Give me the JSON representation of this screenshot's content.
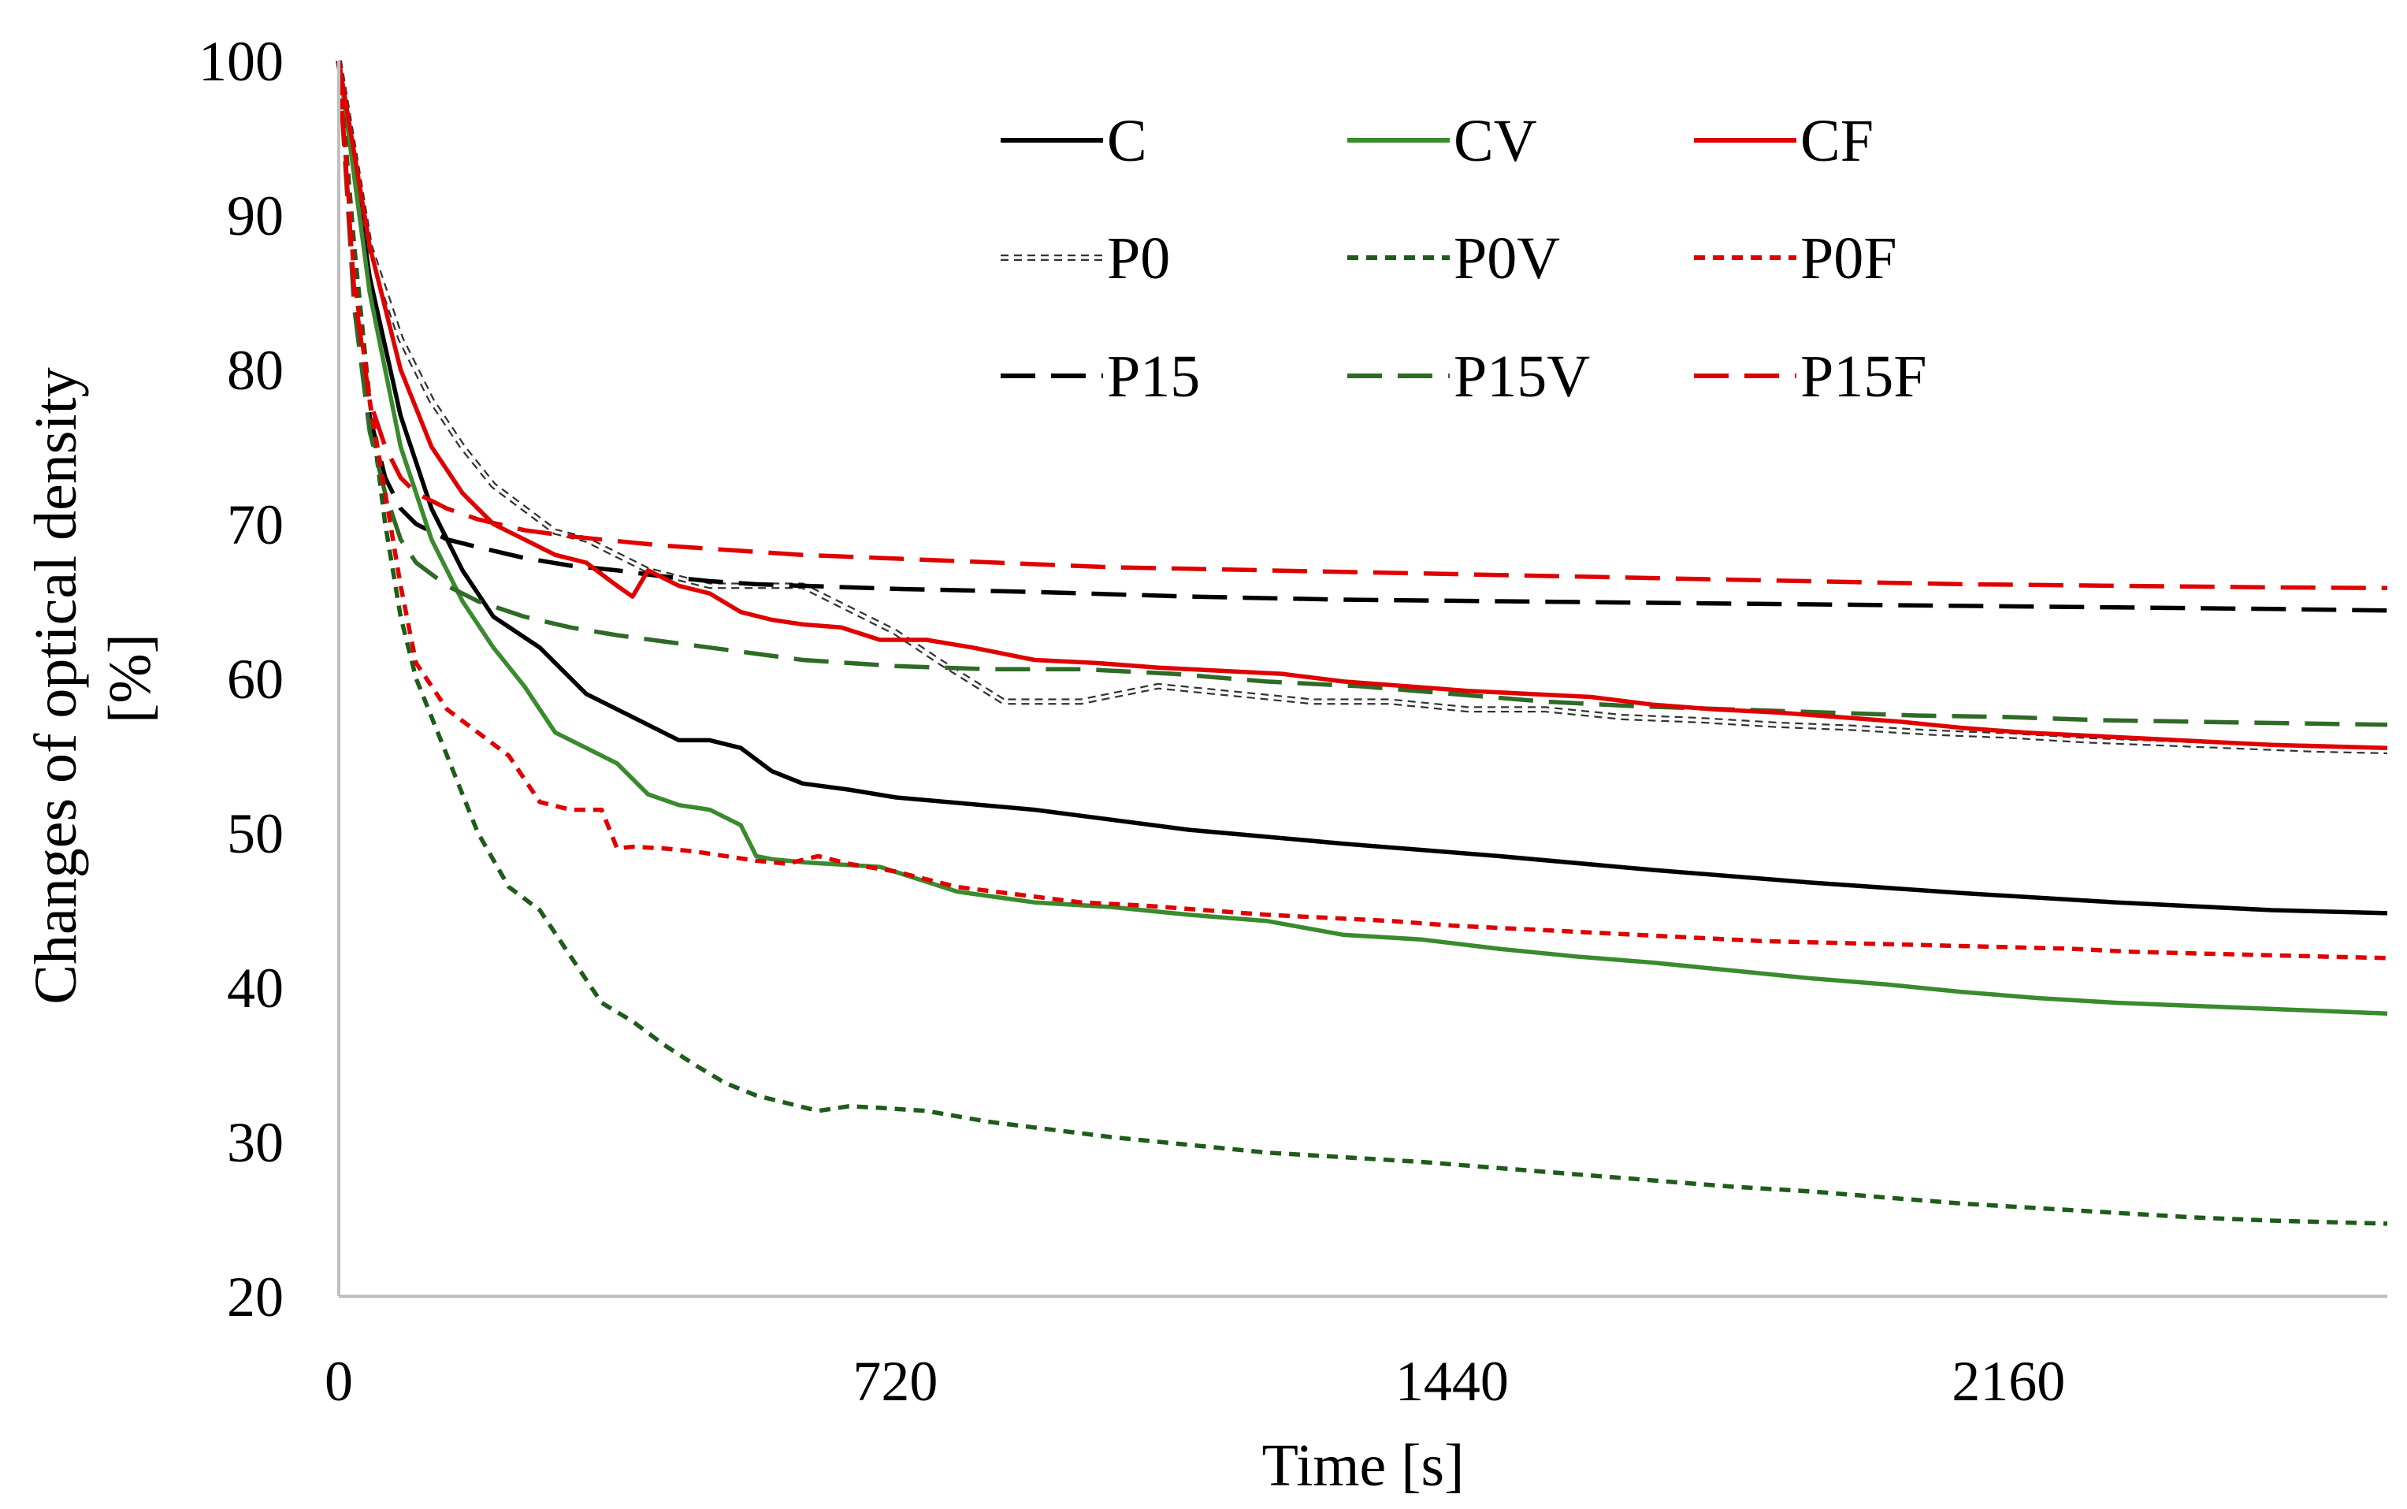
{
  "chart_data": {
    "type": "line",
    "title": "",
    "xlabel": "Time [s]",
    "ylabel_lines": [
      "Changes of optical density",
      "[%]"
    ],
    "xlim": [
      0,
      2650
    ],
    "ylim": [
      20,
      100
    ],
    "xticks": [
      0,
      720,
      1440,
      2160
    ],
    "yticks": [
      20,
      30,
      40,
      50,
      60,
      70,
      80,
      90,
      100
    ],
    "grid": false,
    "legend_position": "top-right",
    "series": [
      {
        "name": "C",
        "color": "#000000",
        "dash": "solid",
        "x": [
          0,
          40,
          80,
          120,
          160,
          200,
          260,
          320,
          400,
          440,
          480,
          520,
          560,
          600,
          660,
          720,
          900,
          1100,
          1300,
          1500,
          1700,
          1900,
          2100,
          2300,
          2500,
          2650
        ],
        "y": [
          100,
          86,
          77,
          71,
          67,
          64,
          62,
          59,
          57,
          56,
          56,
          55.5,
          54,
          53.2,
          52.8,
          52.3,
          51.5,
          50.2,
          49.3,
          48.5,
          47.6,
          46.8,
          46.1,
          45.5,
          45,
          44.8
        ]
      },
      {
        "name": "P0",
        "color": "#333333",
        "dash": "double",
        "x": [
          0,
          40,
          80,
          120,
          160,
          200,
          240,
          280,
          320,
          360,
          400,
          440,
          480,
          520,
          560,
          600,
          640,
          680,
          720,
          780,
          860,
          960,
          1060,
          1160,
          1260,
          1360,
          1460,
          1560,
          1660,
          1760,
          1860,
          1960,
          2060,
          2160,
          2260,
          2360,
          2460,
          2560,
          2650
        ],
        "y": [
          100,
          88,
          82,
          78,
          75,
          72.5,
          71,
          69.5,
          69,
          68,
          67,
          66.5,
          66,
          66,
          66,
          66,
          65,
          64,
          63,
          61,
          58.5,
          58.5,
          59.5,
          59,
          58.5,
          58.5,
          58,
          58,
          57.5,
          57.3,
          57,
          56.8,
          56.5,
          56.3,
          56,
          55.8,
          55.6,
          55.4,
          55.3
        ]
      },
      {
        "name": "P15",
        "color": "#000000",
        "dash": "long-dash",
        "x": [
          0,
          20,
          40,
          60,
          80,
          100,
          140,
          180,
          240,
          300,
          360,
          420,
          480,
          540,
          600,
          720,
          900,
          1100,
          1300,
          1500,
          1700,
          1900,
          2100,
          2300,
          2500,
          2650
        ],
        "y": [
          100,
          85,
          77,
          73,
          71,
          70,
          69,
          68.5,
          67.8,
          67.3,
          67,
          66.6,
          66.3,
          66.1,
          66,
          65.8,
          65.6,
          65.3,
          65.1,
          65,
          64.9,
          64.8,
          64.7,
          64.6,
          64.5,
          64.4
        ]
      },
      {
        "name": "CV",
        "color": "#3a8a2e",
        "dash": "solid",
        "x": [
          0,
          40,
          80,
          120,
          160,
          200,
          240,
          280,
          320,
          360,
          400,
          440,
          480,
          520,
          540,
          560,
          600,
          700,
          800,
          900,
          1000,
          1100,
          1200,
          1300,
          1400,
          1500,
          1600,
          1700,
          1800,
          1900,
          2000,
          2100,
          2200,
          2300,
          2400,
          2500,
          2650
        ],
        "y": [
          100,
          85,
          75,
          69,
          65,
          62,
          59.5,
          56.5,
          55.5,
          54.5,
          52.5,
          51.8,
          51.5,
          50.5,
          48.5,
          48.3,
          48.1,
          47.8,
          46.2,
          45.5,
          45.2,
          44.7,
          44.3,
          43.4,
          43.1,
          42.5,
          42,
          41.6,
          41.1,
          40.6,
          40.2,
          39.7,
          39.3,
          39,
          38.8,
          38.6,
          38.3
        ]
      },
      {
        "name": "P0V",
        "color": "#1f5c1a",
        "dash": "short-dash",
        "x": [
          0,
          20,
          40,
          60,
          80,
          100,
          140,
          180,
          220,
          260,
          300,
          340,
          380,
          420,
          460,
          500,
          540,
          580,
          620,
          660,
          700,
          760,
          840,
          920,
          1000,
          1100,
          1200,
          1300,
          1400,
          1500,
          1600,
          1700,
          1800,
          1900,
          2000,
          2100,
          2200,
          2300,
          2400,
          2500,
          2650
        ],
        "y": [
          100,
          88,
          78,
          70,
          64,
          60,
          55,
          50,
          46.5,
          45,
          42,
          39,
          37.8,
          36.3,
          35,
          33.8,
          33,
          32.5,
          32,
          32.3,
          32.2,
          32,
          31.3,
          30.8,
          30.3,
          29.8,
          29.3,
          29,
          28.7,
          28.3,
          27.9,
          27.5,
          27.1,
          26.8,
          26.4,
          26,
          25.7,
          25.4,
          25.1,
          24.9,
          24.7
        ]
      },
      {
        "name": "P15V",
        "color": "#2e6b26",
        "dash": "long-dash",
        "x": [
          0,
          20,
          40,
          60,
          80,
          100,
          140,
          180,
          240,
          300,
          360,
          420,
          480,
          540,
          600,
          720,
          840,
          960,
          1080,
          1200,
          1320,
          1440,
          1560,
          1680,
          1800,
          1920,
          2040,
          2160,
          2280,
          2400,
          2520,
          2650
        ],
        "y": [
          100,
          84,
          76,
          72,
          69,
          67.5,
          66,
          65,
          64,
          63.3,
          62.8,
          62.4,
          62,
          61.6,
          61.2,
          60.8,
          60.6,
          60.6,
          60.3,
          59.8,
          59.5,
          59,
          58.5,
          58.2,
          58,
          57.8,
          57.6,
          57.5,
          57.3,
          57.2,
          57.1,
          57
        ]
      },
      {
        "name": "CF",
        "color": "#e00000",
        "dash": "solid",
        "x": [
          0,
          40,
          80,
          120,
          160,
          200,
          240,
          280,
          320,
          360,
          380,
          400,
          440,
          480,
          520,
          560,
          600,
          650,
          700,
          760,
          820,
          900,
          980,
          1060,
          1140,
          1220,
          1300,
          1380,
          1460,
          1540,
          1620,
          1700,
          1780,
          1860,
          1940,
          2020,
          2100,
          2180,
          2260,
          2340,
          2420,
          2500,
          2650
        ],
        "y": [
          100,
          88,
          80,
          75,
          72,
          70,
          69,
          68,
          67.5,
          66,
          65.3,
          67,
          66,
          65.5,
          64.3,
          63.8,
          63.5,
          63.3,
          62.5,
          62.5,
          62,
          61.2,
          61,
          60.7,
          60.5,
          60.3,
          59.8,
          59.5,
          59.2,
          59,
          58.8,
          58.3,
          58,
          57.8,
          57.5,
          57.2,
          56.8,
          56.5,
          56.3,
          56.1,
          55.9,
          55.7,
          55.5
        ]
      },
      {
        "name": "P0F",
        "color": "#e00000",
        "dash": "short-dash",
        "x": [
          0,
          20,
          40,
          60,
          80,
          100,
          140,
          180,
          220,
          260,
          300,
          340,
          360,
          380,
          420,
          460,
          500,
          540,
          580,
          620,
          660,
          720,
          800,
          880,
          960,
          1040,
          1120,
          1200,
          1280,
          1360,
          1440,
          1520,
          1600,
          1680,
          1760,
          1840,
          1920,
          2000,
          2080,
          2160,
          2240,
          2320,
          2400,
          2480,
          2560,
          2650
        ],
        "y": [
          100,
          86,
          78,
          72,
          66,
          61,
          58,
          56.5,
          55,
          52,
          51.5,
          51.5,
          49,
          49.1,
          49,
          48.8,
          48.5,
          48.2,
          48,
          48.5,
          48,
          47.5,
          46.5,
          46,
          45.5,
          45.3,
          45,
          44.7,
          44.5,
          44.3,
          44,
          43.8,
          43.6,
          43.4,
          43.2,
          43,
          42.9,
          42.8,
          42.7,
          42.6,
          42.5,
          42.3,
          42.2,
          42.1,
          42,
          41.9
        ]
      },
      {
        "name": "P15F",
        "color": "#e00000",
        "dash": "long-dash",
        "x": [
          0,
          20,
          40,
          60,
          80,
          100,
          140,
          180,
          240,
          300,
          360,
          420,
          480,
          540,
          600,
          700,
          800,
          900,
          1000,
          1100,
          1200,
          1300,
          1400,
          1500,
          1600,
          1700,
          1800,
          1900,
          2000,
          2100,
          2200,
          2300,
          2400,
          2500,
          2650
        ],
        "y": [
          100,
          85,
          78,
          75,
          73,
          72,
          71,
          70.3,
          69.6,
          69.2,
          68.9,
          68.6,
          68.4,
          68.2,
          68,
          67.8,
          67.6,
          67.4,
          67.2,
          67.1,
          67,
          66.9,
          66.8,
          66.7,
          66.6,
          66.5,
          66.4,
          66.3,
          66.2,
          66.1,
          66.05,
          66,
          65.95,
          65.9,
          65.85
        ]
      }
    ]
  }
}
